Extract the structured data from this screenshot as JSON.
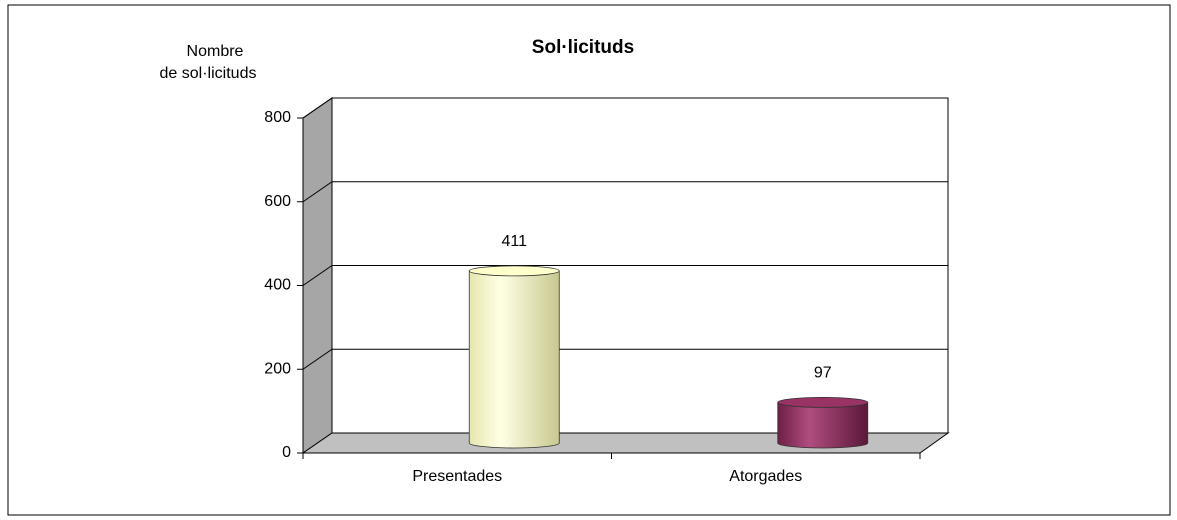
{
  "chart_data": {
    "type": "bar3d",
    "title": "Sol·licituds",
    "ylabel": [
      "Nombre",
      "de sol·licituds"
    ],
    "categories": [
      "Presentades",
      "Atorgades"
    ],
    "values": [
      411,
      97
    ],
    "colors": [
      "#ffffcc",
      "#993366"
    ],
    "ylim": [
      0,
      800
    ],
    "yticks": [
      0,
      200,
      400,
      600,
      800
    ],
    "grid": true
  }
}
